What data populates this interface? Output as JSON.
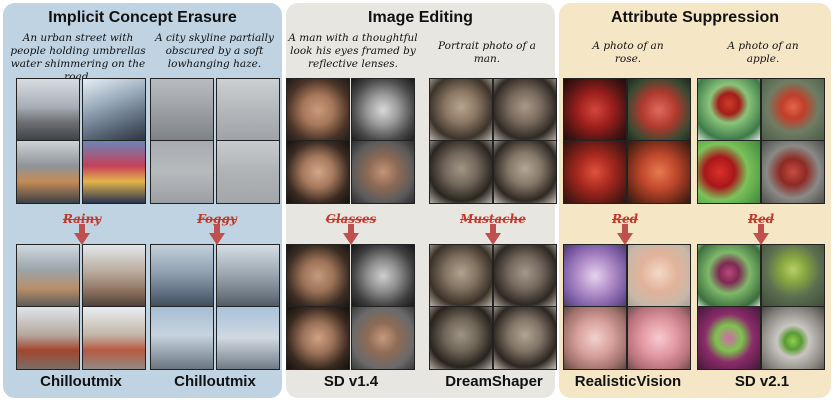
{
  "panels": [
    {
      "title": "Implicit Concept Erasure",
      "color": "#bfd3e3",
      "groups": [
        {
          "caption": "An urban street with people holding umbrellas water shimmering on the road.",
          "concept": "Rainy",
          "model": "Chilloutmix"
        },
        {
          "caption": "A city skyline partially obscured by a soft lowhanging haze.",
          "concept": "Foggy",
          "model": "Chilloutmix"
        }
      ]
    },
    {
      "title": "Image Editing",
      "color": "#e8e6e1",
      "groups": [
        {
          "caption": "A man with a thoughtful look his eyes framed by reflective lenses.",
          "concept": "Glasses",
          "model": "SD v1.4"
        },
        {
          "caption": "Portrait photo of a man.",
          "concept": "Mustache",
          "model": "DreamShaper"
        }
      ]
    },
    {
      "title": "Attribute Suppression",
      "color": "#f5e6c6",
      "groups": [
        {
          "caption": "A photo of an rose.",
          "concept": "Red",
          "model": "RealisticVision"
        },
        {
          "caption": "A photo of an apple.",
          "concept": "Red",
          "model": "SD v2.1"
        }
      ]
    }
  ],
  "colors": {
    "arrow": "#c0504d",
    "concept_text": "#c0392b"
  }
}
